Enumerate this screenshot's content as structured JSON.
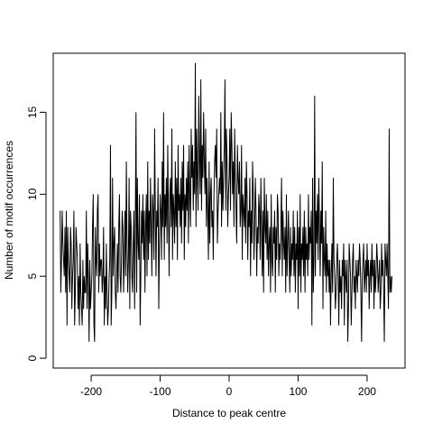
{
  "chart_data": {
    "type": "line",
    "title": "",
    "xlabel": "Distance to peak centre",
    "ylabel": "Number of motif occurrences",
    "xlim": [
      -255,
      255
    ],
    "ylim": [
      -0.6,
      18.6
    ],
    "x_ticks": [
      -200,
      -100,
      0,
      100,
      200
    ],
    "y_ticks": [
      0,
      5,
      10,
      15
    ],
    "x_tick_labels": [
      "-200",
      "-100",
      "0",
      "100",
      "200"
    ],
    "y_tick_labels": [
      "0",
      "5",
      "10",
      "15"
    ],
    "grid": false,
    "line_color": "#000000",
    "series": [
      {
        "x_start": -245,
        "x_step": 1,
        "y": [
          9,
          4,
          6,
          9,
          7,
          6,
          5,
          8,
          4,
          9,
          2,
          8,
          6,
          5,
          4,
          8,
          7,
          3,
          5,
          6,
          9,
          2,
          4,
          8,
          7,
          6,
          3,
          5,
          2,
          7,
          4,
          3,
          2,
          6,
          3,
          5,
          4,
          4,
          9,
          3,
          7,
          5,
          1,
          6,
          3,
          4,
          5,
          8,
          10,
          2,
          1,
          8,
          6,
          5,
          9,
          10,
          4,
          7,
          5,
          6,
          6,
          4,
          5,
          8,
          2,
          5,
          3,
          7,
          4,
          2,
          3,
          5,
          6,
          13,
          2,
          4,
          11,
          5,
          7,
          8,
          4,
          3,
          5,
          7,
          4,
          8,
          10,
          5,
          4,
          6,
          9,
          8,
          4,
          6,
          9,
          5,
          12,
          7,
          4,
          6,
          11,
          3,
          9,
          8,
          5,
          4,
          7,
          9,
          3,
          8,
          15,
          4,
          11,
          7,
          6,
          10,
          2,
          5,
          9,
          7,
          10,
          6,
          9,
          4,
          8,
          10,
          5,
          12,
          6,
          9,
          7,
          11,
          8,
          5,
          10,
          9,
          6,
          14,
          9,
          5,
          9,
          8,
          11,
          3,
          7,
          10,
          9,
          6,
          12,
          8,
          15,
          6,
          10,
          8,
          11,
          7,
          13,
          9,
          5,
          10,
          11,
          8,
          14,
          6,
          10,
          9,
          7,
          12,
          8,
          11,
          6,
          13,
          9,
          10,
          8,
          11,
          7,
          12,
          9,
          13,
          6,
          10,
          8,
          11,
          9,
          12,
          7,
          13,
          10,
          8,
          14,
          11,
          13,
          9,
          12,
          10,
          18,
          8,
          14,
          11,
          9,
          16,
          12,
          10,
          17,
          9,
          13,
          11,
          15,
          12,
          10,
          14,
          8,
          11,
          9,
          6,
          12,
          7,
          10,
          11,
          8,
          9,
          6,
          10,
          12,
          13,
          11,
          14,
          7,
          9,
          10,
          11,
          10,
          15,
          8,
          12,
          9,
          11,
          13,
          17,
          9,
          14,
          12,
          8,
          10,
          11,
          14,
          9,
          15,
          13,
          10,
          12,
          8,
          14,
          11,
          9,
          7,
          13,
          11,
          10,
          12,
          8,
          9,
          13,
          6,
          10,
          9,
          8,
          11,
          7,
          12,
          10,
          6,
          9,
          8,
          11,
          5,
          9,
          7,
          12,
          10,
          6,
          8,
          11,
          9,
          5,
          8,
          7,
          10,
          9,
          6,
          11,
          8,
          5,
          9,
          4,
          11,
          8,
          7,
          10,
          6,
          9,
          5,
          7,
          8,
          4,
          10,
          6,
          5,
          8,
          7,
          9,
          4,
          8,
          6,
          10,
          9,
          5,
          7,
          6,
          8,
          11,
          5,
          9,
          7,
          6,
          8,
          4,
          10,
          5,
          7,
          9,
          6,
          4,
          8,
          5,
          7,
          6,
          9,
          5,
          8,
          4,
          7,
          6,
          9,
          3,
          8,
          5,
          10,
          4,
          7,
          6,
          8,
          5,
          9,
          4,
          8,
          6,
          7,
          5,
          10,
          6,
          8,
          7,
          9,
          2,
          11,
          4,
          6,
          16,
          5,
          9,
          7,
          10,
          6,
          11,
          8,
          5,
          9,
          7,
          12,
          3,
          8,
          6,
          5,
          9,
          4,
          7,
          5,
          6,
          4,
          6,
          2,
          5,
          7,
          4,
          11,
          6,
          5,
          3,
          4,
          6,
          7,
          5,
          2,
          6,
          4,
          5,
          3,
          6,
          5,
          7,
          2,
          6,
          5,
          4,
          6,
          1,
          3,
          7,
          6,
          5,
          2,
          4,
          6,
          7,
          4,
          5,
          3,
          6,
          5,
          4,
          6,
          5,
          7,
          6,
          4,
          1,
          5,
          6,
          7,
          4,
          5,
          6,
          4,
          7,
          5,
          6,
          3,
          5,
          6,
          4,
          7,
          5,
          6,
          3,
          6,
          4,
          5,
          7,
          6,
          4,
          5,
          6,
          3,
          4,
          7,
          5,
          6,
          4,
          1,
          7,
          6,
          5,
          7,
          5,
          3,
          14,
          4,
          5,
          4,
          5
        ]
      }
    ]
  }
}
